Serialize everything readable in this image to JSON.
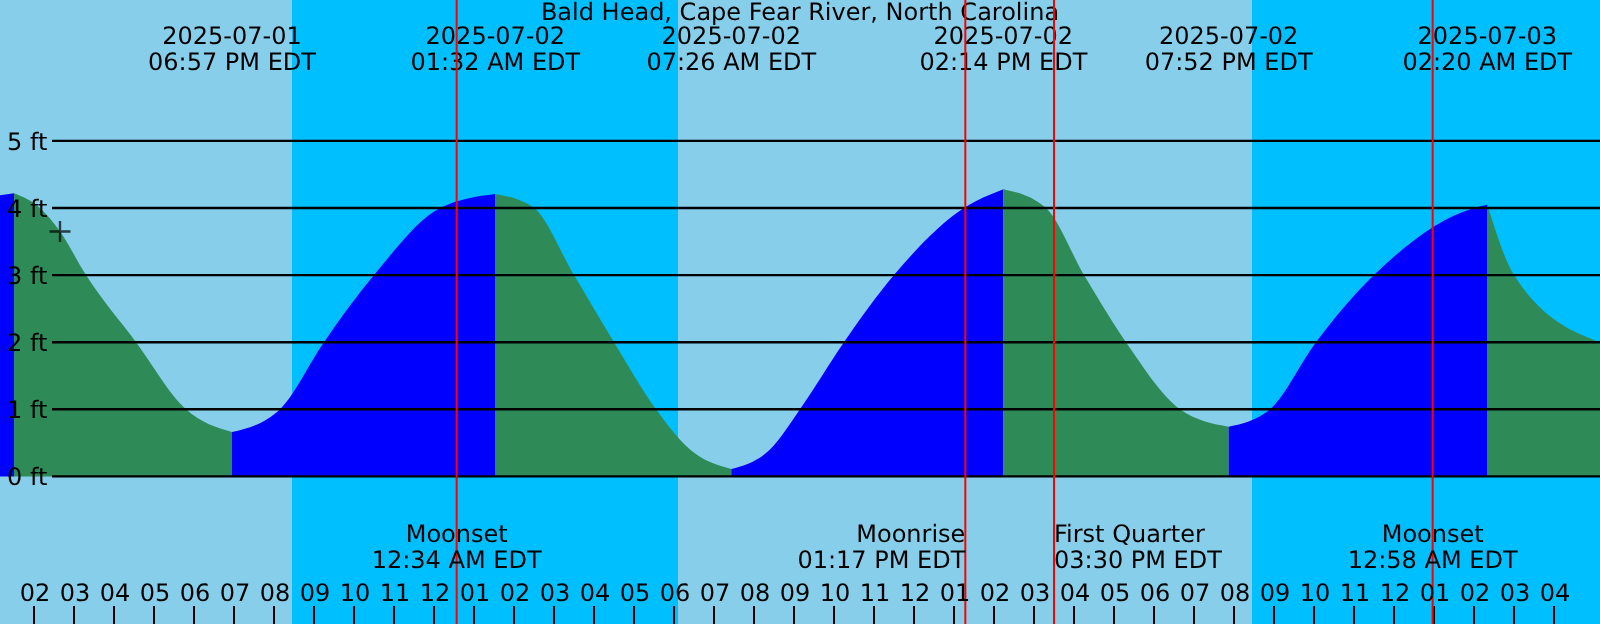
{
  "chart_data": {
    "type": "area",
    "title": "Bald Head, Cape Fear River, North Carolina",
    "series": [
      {
        "color": "#0000ff",
        "x": [
          "2025-07-01T13:09",
          "2025-07-01T13:30"
        ],
        "values": [
          4.19,
          4.22
        ]
      },
      {
        "color": "#2e8b57",
        "x": [
          "2025-07-01T13:30",
          "2025-07-01T14:09",
          "2025-07-01T14:39",
          "2025-07-01T15:18",
          "2025-07-01T16:33",
          "2025-07-01T17:48",
          "2025-07-01T18:57"
        ],
        "values": [
          4.22,
          4.0,
          3.65,
          3.0,
          2.0,
          1.0,
          0.66
        ]
      },
      {
        "color": "#0000ff",
        "x": [
          "2025-07-01T18:57",
          "2025-07-01T20:09",
          "2025-07-01T21:15",
          "2025-07-01T22:30",
          "2025-07-02T00:09",
          "2025-07-02T01:32"
        ],
        "values": [
          0.66,
          1.0,
          2.0,
          3.0,
          4.0,
          4.21
        ]
      },
      {
        "color": "#2e8b57",
        "x": [
          "2025-07-02T01:32",
          "2025-07-02T02:30",
          "2025-07-02T03:30",
          "2025-07-02T04:30",
          "2025-07-02T05:33",
          "2025-07-02T06:24",
          "2025-07-02T07:26"
        ],
        "values": [
          4.21,
          4.0,
          3.0,
          2.0,
          1.0,
          0.4,
          0.11
        ]
      },
      {
        "color": "#0000ff",
        "x": [
          "2025-07-02T07:26",
          "2025-07-02T08:24",
          "2025-07-02T09:09",
          "2025-07-02T10:15",
          "2025-07-02T11:30",
          "2025-07-02T13:15",
          "2025-07-02T14:14"
        ],
        "values": [
          0.11,
          0.4,
          1.0,
          2.0,
          3.0,
          4.0,
          4.28
        ]
      },
      {
        "color": "#2e8b57",
        "x": [
          "2025-07-02T14:14",
          "2025-07-02T15:18",
          "2025-07-02T16:15",
          "2025-07-02T17:18",
          "2025-07-02T18:39",
          "2025-07-02T19:52"
        ],
        "values": [
          4.28,
          4.0,
          3.0,
          2.0,
          1.0,
          0.74
        ]
      },
      {
        "color": "#0000ff",
        "x": [
          "2025-07-02T19:52",
          "2025-07-02T20:54",
          "2025-07-02T22:03",
          "2025-07-02T23:30",
          "2025-07-03T02:00",
          "2025-07-03T02:20"
        ],
        "values": [
          0.74,
          1.0,
          2.0,
          3.0,
          4.0,
          4.05
        ]
      },
      {
        "color": "#2e8b57",
        "x": [
          "2025-07-03T02:20",
          "2025-07-03T03:00",
          "2025-07-03T05:09"
        ],
        "values": [
          4.05,
          3.0,
          2.0
        ]
      },
      {
        "type": "scatter",
        "marker": "cross",
        "color": "#000000",
        "x": [
          "2025-07-01T14:39"
        ],
        "values": [
          3.65
        ]
      }
    ],
    "xlim": [
      "2025-07-01T13:09",
      "2025-07-03T05:09"
    ],
    "xticks": [
      {
        "value": "2025-07-01T14:00",
        "label": "02"
      },
      {
        "value": "2025-07-01T15:00",
        "label": "03"
      },
      {
        "value": "2025-07-01T16:00",
        "label": "04"
      },
      {
        "value": "2025-07-01T17:00",
        "label": "05"
      },
      {
        "value": "2025-07-01T18:00",
        "label": "06"
      },
      {
        "value": "2025-07-01T19:00",
        "label": "07"
      },
      {
        "value": "2025-07-01T20:00",
        "label": "08"
      },
      {
        "value": "2025-07-01T21:00",
        "label": "09"
      },
      {
        "value": "2025-07-01T22:00",
        "label": "10"
      },
      {
        "value": "2025-07-01T23:00",
        "label": "11"
      },
      {
        "value": "2025-07-02T00:00",
        "label": "12"
      },
      {
        "value": "2025-07-02T01:00",
        "label": "01"
      },
      {
        "value": "2025-07-02T02:00",
        "label": "02"
      },
      {
        "value": "2025-07-02T03:00",
        "label": "03"
      },
      {
        "value": "2025-07-02T04:00",
        "label": "04"
      },
      {
        "value": "2025-07-02T05:00",
        "label": "05"
      },
      {
        "value": "2025-07-02T06:00",
        "label": "06"
      },
      {
        "value": "2025-07-02T07:00",
        "label": "07"
      },
      {
        "value": "2025-07-02T08:00",
        "label": "08"
      },
      {
        "value": "2025-07-02T09:00",
        "label": "09"
      },
      {
        "value": "2025-07-02T10:00",
        "label": "10"
      },
      {
        "value": "2025-07-02T11:00",
        "label": "11"
      },
      {
        "value": "2025-07-02T12:00",
        "label": "12"
      },
      {
        "value": "2025-07-02T13:00",
        "label": "01"
      },
      {
        "value": "2025-07-02T14:00",
        "label": "02"
      },
      {
        "value": "2025-07-02T15:00",
        "label": "03"
      },
      {
        "value": "2025-07-02T16:00",
        "label": "04"
      },
      {
        "value": "2025-07-02T17:00",
        "label": "05"
      },
      {
        "value": "2025-07-02T18:00",
        "label": "06"
      },
      {
        "value": "2025-07-02T19:00",
        "label": "07"
      },
      {
        "value": "2025-07-02T20:00",
        "label": "08"
      },
      {
        "value": "2025-07-02T21:00",
        "label": "09"
      },
      {
        "value": "2025-07-02T22:00",
        "label": "10"
      },
      {
        "value": "2025-07-02T23:00",
        "label": "11"
      },
      {
        "value": "2025-07-03T00:00",
        "label": "12"
      },
      {
        "value": "2025-07-03T01:00",
        "label": "01"
      },
      {
        "value": "2025-07-03T02:00",
        "label": "02"
      },
      {
        "value": "2025-07-03T03:00",
        "label": "03"
      },
      {
        "value": "2025-07-03T04:00",
        "label": "04"
      }
    ],
    "ylim": [
      -2.2,
      7.1
    ],
    "yticks": [
      {
        "value": 0,
        "label": "0 ft"
      },
      {
        "value": 1,
        "label": "1 ft"
      },
      {
        "value": 2,
        "label": "2 ft"
      },
      {
        "value": 3,
        "label": "3 ft"
      },
      {
        "value": 4,
        "label": "4 ft"
      },
      {
        "value": 5,
        "label": "5 ft"
      }
    ],
    "grid": "y",
    "bands": [
      {
        "axis": "x",
        "from": "2025-07-01T13:09",
        "to": "2025-07-01T20:27",
        "color": "#87ceeb"
      },
      {
        "axis": "x",
        "from": "2025-07-01T20:27",
        "to": "2025-07-02T06:06",
        "color": "#00bfff"
      },
      {
        "axis": "x",
        "from": "2025-07-02T06:06",
        "to": "2025-07-02T20:27",
        "color": "#87ceeb"
      },
      {
        "axis": "x",
        "from": "2025-07-02T20:27",
        "to": "2025-07-03T05:09",
        "color": "#00bfff"
      }
    ],
    "ref_lines": [
      {
        "axis": "x",
        "value": "2025-07-02T00:34",
        "label": "Moonset\n12:34 AM EDT",
        "color": "#ff0000"
      },
      {
        "axis": "x",
        "value": "2025-07-02T13:17",
        "label": "Moonrise\n01:17 PM EDT",
        "color": "#ff0000"
      },
      {
        "axis": "x",
        "value": "2025-07-02T15:30",
        "label": "First Quarter\n03:30 PM EDT",
        "color": "#ff0000"
      },
      {
        "axis": "x",
        "value": "2025-07-03T00:58",
        "label": "Moonset\n12:58 AM EDT",
        "color": "#ff0000"
      }
    ],
    "annotations": [
      "2025-07-01\n06:57 PM EDT",
      "2025-07-02\n01:32 AM EDT",
      "2025-07-02\n07:26 AM EDT",
      "2025-07-02\n02:14 PM EDT",
      "2025-07-02\n07:52 PM EDT",
      "2025-07-03\n02:20 AM EDT"
    ]
  }
}
